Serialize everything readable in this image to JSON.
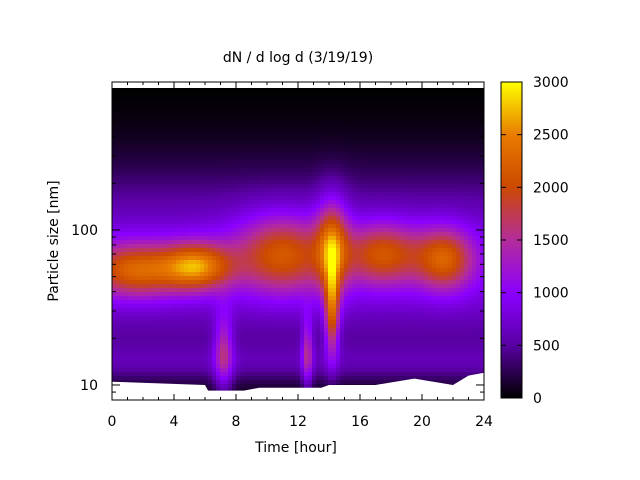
{
  "chart_data": {
    "type": "heatmap",
    "title": "dN / d log d (3/19/19)",
    "xlabel": "Time [hour]",
    "ylabel": "Particle size [nm]",
    "x_ticks": [
      "0",
      "4",
      "8",
      "12",
      "16",
      "20",
      "24"
    ],
    "x_range": [
      0,
      24
    ],
    "y_scale": "log",
    "y_ticks": [
      "10",
      "100"
    ],
    "y_range": [
      8,
      900
    ],
    "colorbar": {
      "range": [
        0,
        3000
      ],
      "ticks": [
        "0",
        "500",
        "1000",
        "1500",
        "2000",
        "2500",
        "3000"
      ],
      "palette": [
        "#000000",
        "#5a00a5",
        "#8a00ff",
        "#b42c9a",
        "#cc4a00",
        "#e87a00",
        "#ffff00"
      ]
    },
    "blobs": [
      {
        "t": 1.5,
        "size": 55,
        "width_t": 3.0,
        "width_logd": 0.17,
        "value": 2300
      },
      {
        "t": 5.5,
        "size": 58,
        "width_t": 2.2,
        "width_logd": 0.15,
        "value": 2650
      },
      {
        "t": 7.2,
        "size": 16,
        "width_t": 0.6,
        "width_logd": 0.25,
        "value": 1700
      },
      {
        "t": 11.0,
        "size": 70,
        "width_t": 3.0,
        "width_logd": 0.25,
        "value": 2100
      },
      {
        "t": 12.6,
        "size": 16,
        "width_t": 0.35,
        "width_logd": 0.22,
        "value": 1650
      },
      {
        "t": 14.2,
        "size": 30,
        "width_t": 0.45,
        "width_logd": 0.3,
        "value": 2600
      },
      {
        "t": 14.2,
        "size": 80,
        "width_t": 1.0,
        "width_logd": 0.3,
        "value": 2150
      },
      {
        "t": 17.5,
        "size": 70,
        "width_t": 2.5,
        "width_logd": 0.2,
        "value": 2050
      },
      {
        "t": 21.5,
        "size": 65,
        "width_t": 1.8,
        "width_logd": 0.2,
        "value": 2150
      }
    ],
    "cutoff_size_by_hour": [
      {
        "t": 0,
        "size": 10.5
      },
      {
        "t": 6,
        "size": 10
      },
      {
        "t": 6.2,
        "size": 9.2
      },
      {
        "t": 8.5,
        "size": 9.2
      },
      {
        "t": 9.5,
        "size": 9.6
      },
      {
        "t": 13.5,
        "size": 9.6
      },
      {
        "t": 14,
        "size": 10
      },
      {
        "t": 17,
        "size": 10
      },
      {
        "t": 19.5,
        "size": 11
      },
      {
        "t": 22,
        "size": 10
      },
      {
        "t": 23,
        "size": 11.5
      },
      {
        "t": 24,
        "size": 12
      }
    ]
  }
}
